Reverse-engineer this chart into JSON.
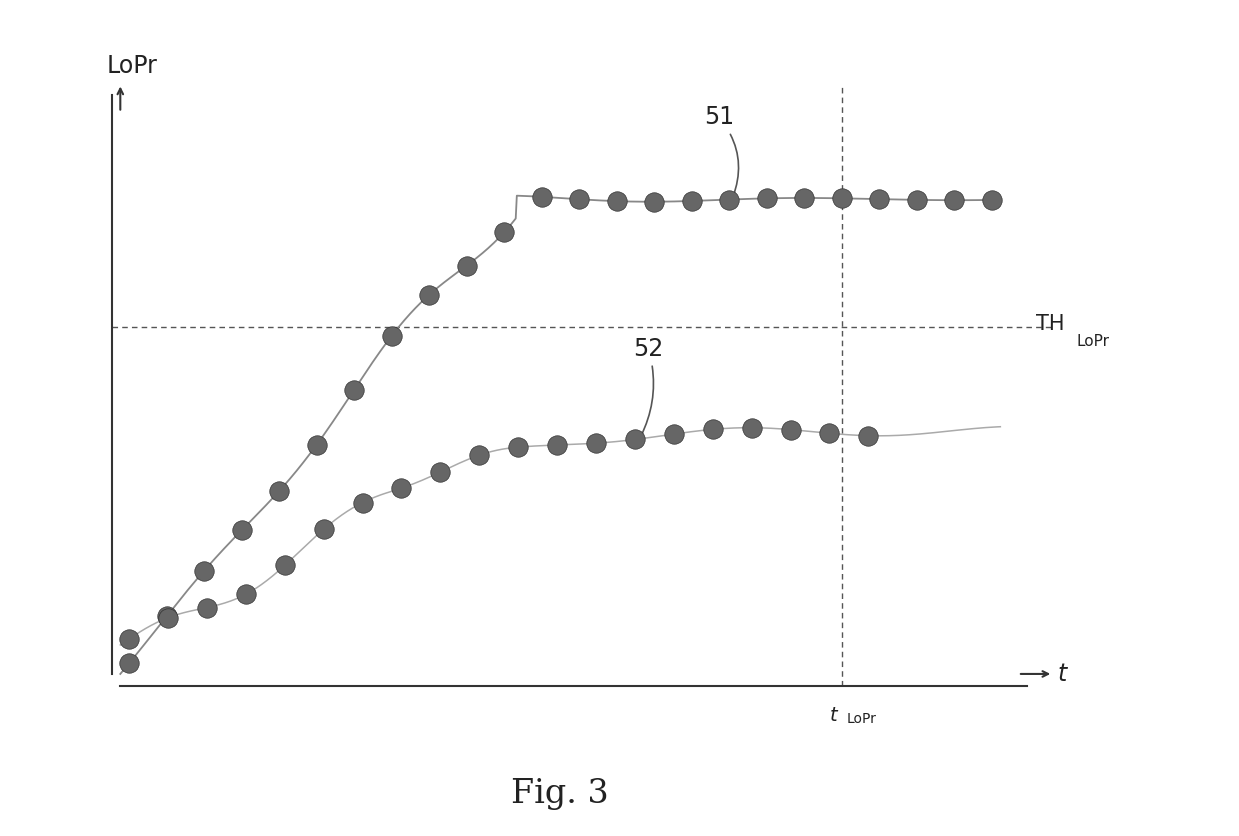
{
  "title": "Fig. 3",
  "ylabel": "LoPr",
  "xlabel": "t",
  "th_label": "TH",
  "th_sub": "LoPr",
  "t_label": "t",
  "t_sub": "LoPr",
  "curve51_label": "51",
  "curve52_label": "52",
  "th_value": 0.6,
  "t_lopr": 0.82,
  "plateau51": 0.82,
  "plateau52": 0.42,
  "background_color": "#ffffff",
  "line_color": "#888888",
  "marker_color": "#555555"
}
